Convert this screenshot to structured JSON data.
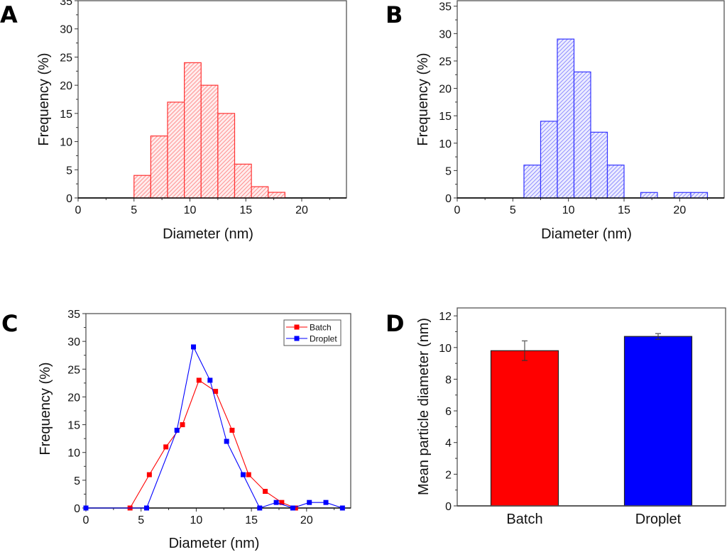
{
  "figure": {
    "panels": [
      "A",
      "B",
      "C",
      "D"
    ]
  },
  "chart_data": [
    {
      "panel": "A",
      "type": "bar",
      "subtype": "histogram",
      "title": "",
      "xlabel": "Diameter (nm)",
      "ylabel": "Frequency (%)",
      "xlim": [
        0,
        24
      ],
      "ylim": [
        0,
        35
      ],
      "xticks": [
        0,
        5,
        10,
        15,
        20
      ],
      "yticks": [
        0,
        5,
        10,
        15,
        20,
        25,
        30,
        35
      ],
      "color": "#ff3333",
      "fill": "hatched",
      "bins": [
        {
          "start": 5.0,
          "end": 6.5,
          "value": 4
        },
        {
          "start": 6.5,
          "end": 8.0,
          "value": 11
        },
        {
          "start": 8.0,
          "end": 9.5,
          "value": 17
        },
        {
          "start": 9.5,
          "end": 11.0,
          "value": 24
        },
        {
          "start": 11.0,
          "end": 12.5,
          "value": 20
        },
        {
          "start": 12.5,
          "end": 14.0,
          "value": 15
        },
        {
          "start": 14.0,
          "end": 15.5,
          "value": 6
        },
        {
          "start": 15.5,
          "end": 17.0,
          "value": 2
        },
        {
          "start": 17.0,
          "end": 18.5,
          "value": 1
        }
      ],
      "grid": false
    },
    {
      "panel": "B",
      "type": "bar",
      "subtype": "histogram",
      "title": "",
      "xlabel": "Diameter (nm)",
      "ylabel": "Frequency (%)",
      "xlim": [
        0,
        24
      ],
      "ylim": [
        0,
        36
      ],
      "xticks": [
        0,
        5,
        10,
        15,
        20
      ],
      "yticks": [
        0,
        5,
        10,
        15,
        20,
        25,
        30,
        35
      ],
      "color": "#3333ff",
      "fill": "hatched",
      "bins": [
        {
          "start": 6.0,
          "end": 7.5,
          "value": 6
        },
        {
          "start": 7.5,
          "end": 9.0,
          "value": 14
        },
        {
          "start": 9.0,
          "end": 10.5,
          "value": 29
        },
        {
          "start": 10.5,
          "end": 12.0,
          "value": 23
        },
        {
          "start": 12.0,
          "end": 13.5,
          "value": 12
        },
        {
          "start": 13.5,
          "end": 15.0,
          "value": 6
        },
        {
          "start": 16.5,
          "end": 18.0,
          "value": 1
        },
        {
          "start": 19.5,
          "end": 21.0,
          "value": 1
        },
        {
          "start": 21.0,
          "end": 22.5,
          "value": 1
        }
      ],
      "grid": false
    },
    {
      "panel": "C",
      "type": "line",
      "title": "",
      "xlabel": "Diameter (nm)",
      "ylabel": "Frequency (%)",
      "xlim": [
        0,
        24
      ],
      "ylim": [
        0,
        35
      ],
      "xticks": [
        0,
        5,
        10,
        15,
        20
      ],
      "yticks": [
        0,
        5,
        10,
        15,
        20,
        25,
        30,
        35
      ],
      "legend_position": "top-right",
      "series": [
        {
          "name": "Batch",
          "color": "#ff0000",
          "marker": "square",
          "points": [
            [
              4.0,
              0
            ],
            [
              5.75,
              6
            ],
            [
              7.25,
              11
            ],
            [
              8.75,
              15
            ],
            [
              10.25,
              23
            ],
            [
              11.75,
              21
            ],
            [
              13.25,
              14
            ],
            [
              14.75,
              6
            ],
            [
              16.25,
              3
            ],
            [
              17.75,
              1
            ],
            [
              19.0,
              0
            ]
          ]
        },
        {
          "name": "Droplet",
          "color": "#0000ff",
          "marker": "square",
          "points": [
            [
              0,
              0
            ],
            [
              5.5,
              0
            ],
            [
              8.25,
              14
            ],
            [
              9.75,
              29
            ],
            [
              11.25,
              23
            ],
            [
              12.75,
              12
            ],
            [
              14.25,
              6
            ],
            [
              15.75,
              0
            ],
            [
              17.25,
              1
            ],
            [
              18.75,
              0
            ],
            [
              20.25,
              1
            ],
            [
              21.75,
              1
            ],
            [
              23.25,
              0
            ]
          ]
        }
      ],
      "grid": false
    },
    {
      "panel": "D",
      "type": "bar",
      "title": "",
      "xlabel": "",
      "ylabel": "Mean particle diameter (nm)",
      "ylim": [
        0,
        12.5
      ],
      "yticks": [
        0,
        2,
        4,
        6,
        8,
        10,
        12
      ],
      "categories": [
        "Batch",
        "Droplet"
      ],
      "values": [
        9.8,
        10.7
      ],
      "errors": [
        0.62,
        0.18
      ],
      "colors": [
        "#ff0000",
        "#0000ff"
      ],
      "grid": false
    }
  ]
}
